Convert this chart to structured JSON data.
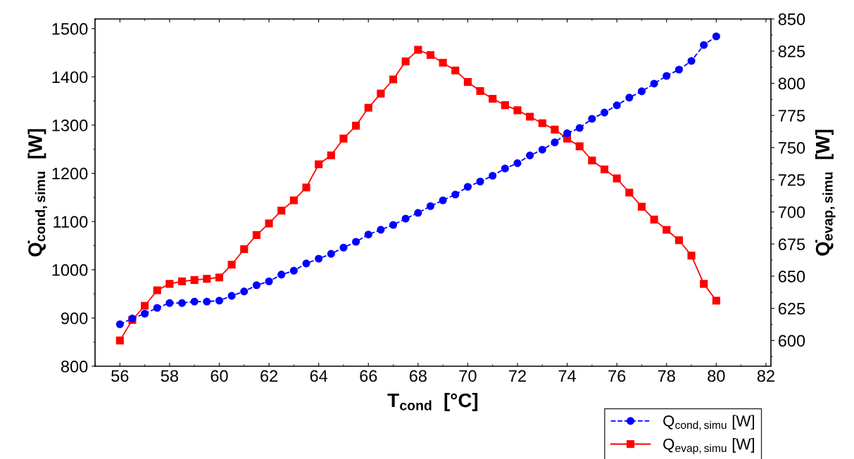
{
  "chart_data": {
    "type": "line",
    "xlabel": "T$_{cond}$  [°C]",
    "ylabel": "Q̇$_{cond,simu}$  [W]",
    "y2label": "Q̇$_{evap,simu}$  [W]",
    "x": [
      56,
      56.5,
      57,
      57.5,
      58,
      58.5,
      59,
      59.5,
      60,
      60.5,
      61,
      61.5,
      62,
      62.5,
      63,
      63.5,
      64,
      64.5,
      65,
      65.5,
      66,
      66.5,
      67,
      67.5,
      68,
      68.5,
      69,
      69.5,
      70,
      70.5,
      71,
      71.5,
      72,
      72.5,
      73,
      73.5,
      74,
      74.5,
      75,
      75.5,
      76,
      76.5,
      77,
      77.5,
      78,
      78.5,
      79,
      79.5,
      80
    ],
    "series": [
      {
        "name": "Q$_{cond,simu}$ [W]",
        "color": "#0000ff",
        "marker": "circle",
        "line_style": "dashed",
        "values": [
          887,
          899,
          909,
          921,
          931,
          931,
          934,
          934,
          936,
          946,
          955,
          968,
          976,
          990,
          998,
          1013,
          1023,
          1033,
          1046,
          1058,
          1073,
          1083,
          1093,
          1106,
          1118,
          1132,
          1144,
          1156,
          1172,
          1183,
          1195,
          1210,
          1221,
          1237,
          1249,
          1264,
          1283,
          1294,
          1313,
          1326,
          1341,
          1357,
          1370,
          1386,
          1402,
          1415,
          1433,
          1466,
          1484
        ]
      },
      {
        "name": "Q$_{evap,simu}$ [W]",
        "color": "#ff0000",
        "marker": "square",
        "line_style": "solid",
        "axis": "y2",
        "values": [
          600,
          616,
          627,
          639,
          644,
          646,
          647,
          648,
          649,
          659,
          671,
          682,
          691,
          701,
          709,
          719,
          737,
          744,
          757,
          767,
          781,
          792,
          803,
          817,
          826,
          822,
          816,
          810,
          801,
          794,
          788,
          783,
          779,
          774,
          769,
          764,
          757,
          751,
          740,
          733,
          726,
          715,
          704,
          694,
          686,
          678,
          666,
          644,
          631
        ]
      }
    ],
    "xlim": [
      55,
      82.2
    ],
    "xticks": [
      56,
      58,
      60,
      62,
      64,
      66,
      68,
      70,
      72,
      74,
      76,
      78,
      80,
      82
    ],
    "ylim": [
      800,
      1520
    ],
    "yticks": [
      800,
      900,
      1000,
      1100,
      1200,
      1300,
      1400,
      1500
    ],
    "y2lim": [
      580,
      850
    ],
    "y2ticks": [
      600,
      625,
      650,
      675,
      700,
      725,
      750,
      775,
      800,
      825,
      850
    ],
    "grid": false,
    "legend": "bottom right"
  }
}
